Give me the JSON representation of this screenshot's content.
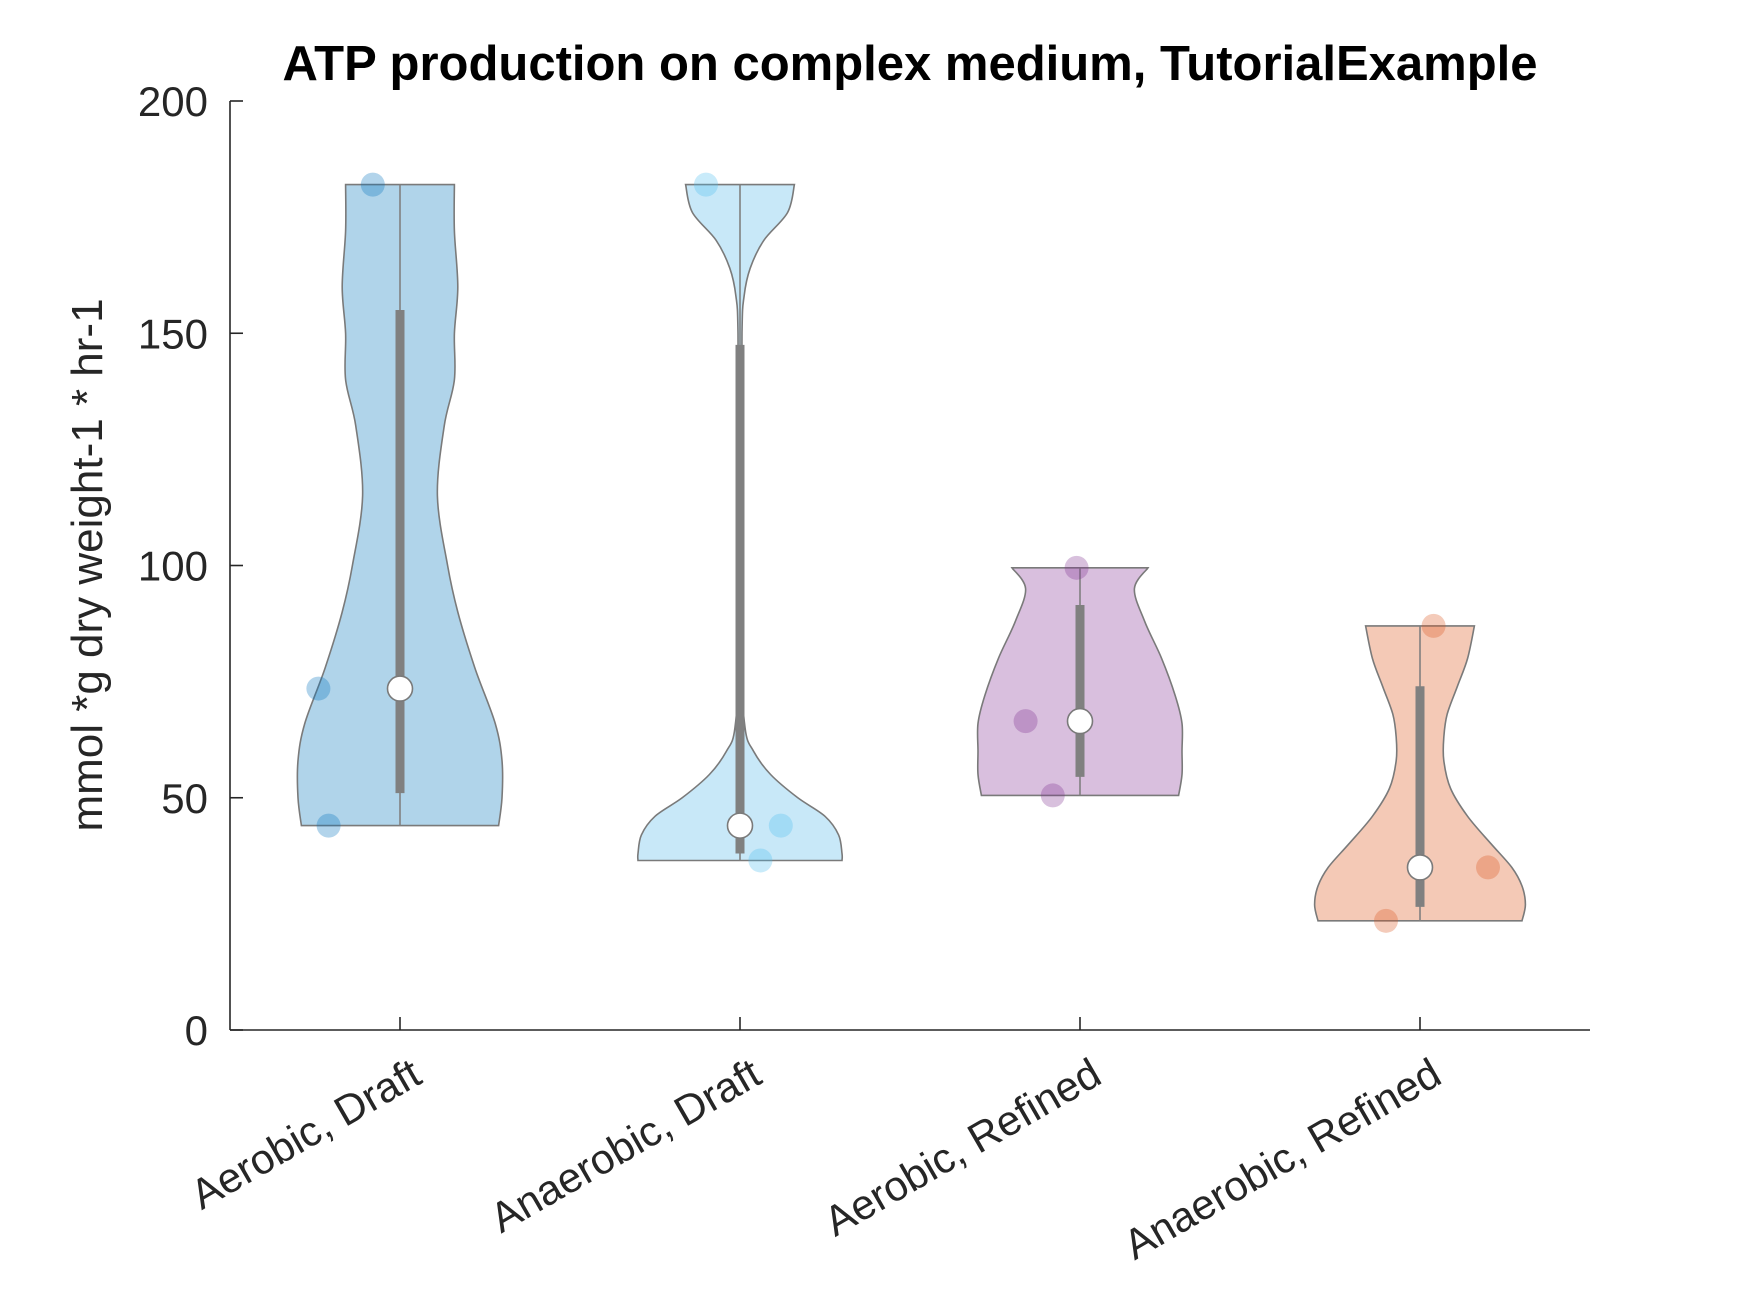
{
  "chart_data": {
    "type": "violin",
    "title": "ATP production on complex medium, TutorialExample",
    "xlabel": "",
    "ylabel": "mmol *g dry weight-1 * hr-1",
    "ylim": [
      0,
      200
    ],
    "yticks": [
      0,
      50,
      100,
      150,
      200
    ],
    "ytick_labels": [
      "0",
      "50",
      "100",
      "150",
      "200"
    ],
    "grid": false,
    "legend": "none",
    "categories": [
      "Aerobic, Draft",
      "Anaerobic, Draft",
      "Aerobic, Refined",
      "Anaerobic, Refined"
    ],
    "series": [
      {
        "category": "Aerobic, Draft",
        "color": "#0072BD",
        "fill_color": "#B0D4EA",
        "points": [
          182.0,
          73.5,
          44.0
        ],
        "point_jitter": [
          -0.08,
          -0.24,
          -0.21
        ],
        "median": 73.5,
        "whisker": [
          51.0,
          155.0
        ],
        "range": [
          44.0,
          182.0
        ],
        "density": [
          [
            44,
            0.29
          ],
          [
            50,
            0.3
          ],
          [
            58,
            0.3
          ],
          [
            66,
            0.28
          ],
          [
            78,
            0.22
          ],
          [
            90,
            0.17
          ],
          [
            100,
            0.14
          ],
          [
            115,
            0.11
          ],
          [
            130,
            0.13
          ],
          [
            140,
            0.16
          ],
          [
            150,
            0.16
          ],
          [
            160,
            0.17
          ],
          [
            172,
            0.16
          ],
          [
            182,
            0.16
          ]
        ]
      },
      {
        "category": "Anaerobic, Draft",
        "color": "#4DBEEE",
        "fill_color": "#C8E8F8",
        "points": [
          182.0,
          44.0,
          44.0,
          36.5
        ],
        "point_jitter": [
          -0.1,
          0.0,
          0.12,
          0.06
        ],
        "median": 44.0,
        "whisker": [
          38.0,
          147.5
        ],
        "range": [
          36.5,
          182.0
        ],
        "density": [
          [
            36.5,
            0.3
          ],
          [
            38,
            0.3
          ],
          [
            42,
            0.29
          ],
          [
            46,
            0.25
          ],
          [
            50,
            0.17
          ],
          [
            55,
            0.09
          ],
          [
            60,
            0.04
          ],
          [
            65,
            0.015
          ],
          [
            80,
            0.004
          ],
          [
            120,
            0.004
          ],
          [
            150,
            0.006
          ],
          [
            158,
            0.012
          ],
          [
            164,
            0.03
          ],
          [
            170,
            0.07
          ],
          [
            176,
            0.14
          ],
          [
            182,
            0.16
          ]
        ]
      },
      {
        "category": "Aerobic, Refined",
        "color": "#7E2F8E",
        "fill_color": "#D9BFDE",
        "points": [
          99.5,
          66.5,
          66.5,
          50.5
        ],
        "point_jitter": [
          -0.01,
          -0.16,
          0.0,
          -0.08
        ],
        "median": 66.5,
        "whisker": [
          54.5,
          91.5
        ],
        "range": [
          50.5,
          99.5
        ],
        "density": [
          [
            50.5,
            0.29
          ],
          [
            55,
            0.3
          ],
          [
            60,
            0.3
          ],
          [
            66,
            0.3
          ],
          [
            72,
            0.28
          ],
          [
            80,
            0.24
          ],
          [
            88,
            0.19
          ],
          [
            95,
            0.16
          ],
          [
            99.5,
            0.2
          ]
        ]
      },
      {
        "category": "Anaerobic, Refined",
        "color": "#D95319",
        "fill_color": "#F4C9B6",
        "points": [
          87.0,
          35.0,
          35.0,
          23.5
        ],
        "point_jitter": [
          0.04,
          0.0,
          0.2,
          -0.1
        ],
        "median": 35.0,
        "whisker": [
          26.5,
          74.0
        ],
        "range": [
          23.5,
          87.0
        ],
        "density": [
          [
            23.5,
            0.3
          ],
          [
            27,
            0.31
          ],
          [
            31,
            0.3
          ],
          [
            35,
            0.27
          ],
          [
            40,
            0.21
          ],
          [
            46,
            0.14
          ],
          [
            52,
            0.09
          ],
          [
            58,
            0.07
          ],
          [
            63,
            0.07
          ],
          [
            68,
            0.08
          ],
          [
            74,
            0.11
          ],
          [
            80,
            0.14
          ],
          [
            87,
            0.16
          ]
        ]
      }
    ]
  }
}
